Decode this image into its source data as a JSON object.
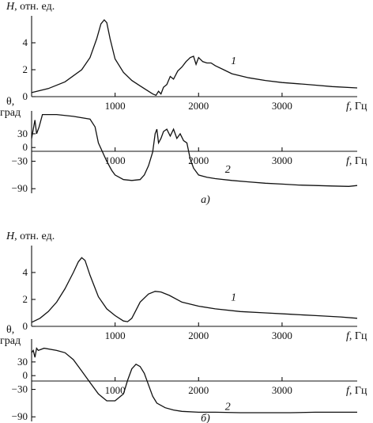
{
  "chart_data": [
    {
      "panel_id": "a",
      "panel_label": "а)",
      "panels": [
        {
          "id": "a-H",
          "type": "line",
          "ylabel_italic": "H",
          "ylabel_rest": ", отн. ед.",
          "xlabel_italic": "f",
          "xlabel_rest": ", Гц",
          "xlim": [
            0,
            3900
          ],
          "ylim": [
            0,
            6
          ],
          "yticks": [
            0,
            2,
            4
          ],
          "xticks": [
            1000,
            2000,
            3000
          ],
          "curve_label": "1",
          "curve_label_pos": [
            2420,
            2.4
          ],
          "x": [
            0,
            200,
            400,
            600,
            700,
            780,
            830,
            870,
            900,
            940,
            1000,
            1100,
            1200,
            1300,
            1400,
            1450,
            1490,
            1520,
            1550,
            1580,
            1620,
            1660,
            1700,
            1750,
            1800,
            1850,
            1900,
            1940,
            1970,
            2000,
            2050,
            2100,
            2150,
            2200,
            2300,
            2400,
            2600,
            2800,
            3000,
            3200,
            3400,
            3600,
            3900
          ],
          "y": [
            0.3,
            0.6,
            1.1,
            2.0,
            2.9,
            4.3,
            5.4,
            5.7,
            5.5,
            4.3,
            2.8,
            1.8,
            1.2,
            0.8,
            0.4,
            0.2,
            0.1,
            0.4,
            0.2,
            0.7,
            0.9,
            1.5,
            1.3,
            1.9,
            2.2,
            2.6,
            2.9,
            3.0,
            2.4,
            2.9,
            2.6,
            2.5,
            2.5,
            2.3,
            2.0,
            1.7,
            1.4,
            1.2,
            1.05,
            0.95,
            0.85,
            0.75,
            0.65
          ]
        },
        {
          "id": "a-theta",
          "type": "line",
          "ylabel_line1": "θ,",
          "ylabel_line2": "град",
          "xlabel_italic": "f",
          "xlabel_rest": ", Гц",
          "xlim": [
            0,
            3900
          ],
          "ylim": [
            -100,
            80
          ],
          "yticks": [
            -90,
            -30,
            0,
            30
          ],
          "xticks": [
            1000,
            2000,
            3000
          ],
          "curve_label": "2",
          "curve_label_pos": [
            2350,
            -55
          ],
          "x": [
            0,
            20,
            40,
            60,
            90,
            130,
            300,
            500,
            700,
            760,
            800,
            850,
            900,
            960,
            1000,
            1100,
            1200,
            1300,
            1350,
            1400,
            1450,
            1480,
            1500,
            1520,
            1550,
            1580,
            1620,
            1660,
            1700,
            1740,
            1780,
            1820,
            1860,
            1900,
            1940,
            2000,
            2100,
            2200,
            2400,
            2600,
            2800,
            3000,
            3200,
            3400,
            3600,
            3800,
            3900
          ],
          "y": [
            20,
            40,
            60,
            30,
            45,
            72,
            72,
            68,
            62,
            45,
            10,
            -10,
            -30,
            -50,
            -60,
            -70,
            -72,
            -70,
            -60,
            -40,
            -10,
            30,
            40,
            10,
            20,
            35,
            40,
            25,
            40,
            20,
            30,
            15,
            10,
            -25,
            -45,
            -60,
            -65,
            -68,
            -72,
            -75,
            -78,
            -80,
            -82,
            -83,
            -84,
            -85,
            -83
          ]
        }
      ]
    },
    {
      "panel_id": "b",
      "panel_label": "б)",
      "panels": [
        {
          "id": "b-H",
          "type": "line",
          "ylabel_italic": "H",
          "ylabel_rest": ", отн. ед.",
          "xlabel_italic": "f",
          "xlabel_rest": ", Гц",
          "xlim": [
            0,
            3900
          ],
          "ylim": [
            0,
            6
          ],
          "yticks": [
            0,
            2,
            4
          ],
          "xticks": [
            1000,
            2000,
            3000
          ],
          "curve_label": "1",
          "curve_label_pos": [
            2420,
            1.9
          ],
          "x": [
            0,
            100,
            200,
            300,
            400,
            500,
            560,
            600,
            640,
            700,
            750,
            800,
            900,
            1000,
            1100,
            1150,
            1200,
            1250,
            1300,
            1400,
            1480,
            1550,
            1650,
            1800,
            2000,
            2200,
            2500,
            2800,
            3100,
            3400,
            3700,
            3900
          ],
          "y": [
            0.3,
            0.6,
            1.1,
            1.8,
            2.8,
            4.0,
            4.8,
            5.1,
            4.9,
            3.8,
            3.0,
            2.2,
            1.3,
            0.8,
            0.4,
            0.35,
            0.6,
            1.2,
            1.8,
            2.4,
            2.6,
            2.55,
            2.3,
            1.8,
            1.5,
            1.3,
            1.1,
            1.0,
            0.9,
            0.8,
            0.7,
            0.6
          ]
        },
        {
          "id": "b-theta",
          "type": "line",
          "ylabel_line1": "θ,",
          "ylabel_line2": "град",
          "xlabel_italic": "f",
          "xlabel_rest": ", Гц",
          "xlim": [
            0,
            3900
          ],
          "ylim": [
            -100,
            80
          ],
          "yticks": [
            -90,
            -30,
            0,
            30
          ],
          "xticks": [
            1000,
            2000,
            3000
          ],
          "curve_label": "2",
          "curve_label_pos": [
            2350,
            -75
          ],
          "x": [
            0,
            20,
            40,
            60,
            80,
            150,
            300,
            400,
            500,
            600,
            700,
            800,
            900,
            1000,
            1100,
            1150,
            1200,
            1250,
            1300,
            1350,
            1400,
            1450,
            1500,
            1600,
            1700,
            1800,
            2000,
            2200,
            2500,
            2800,
            3100,
            3400,
            3700,
            3900
          ],
          "y": [
            50,
            55,
            40,
            60,
            55,
            60,
            55,
            50,
            35,
            10,
            -15,
            -40,
            -55,
            -55,
            -40,
            -10,
            15,
            25,
            20,
            5,
            -20,
            -45,
            -60,
            -70,
            -75,
            -78,
            -80,
            -80,
            -81,
            -81,
            -81,
            -80,
            -80,
            -80
          ]
        }
      ]
    }
  ]
}
